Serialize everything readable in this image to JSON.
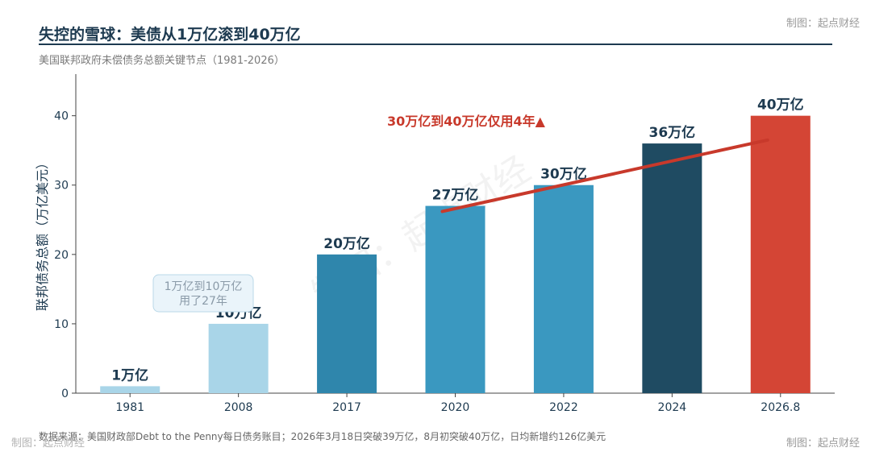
{
  "header": {
    "title": "失控的雪球：美债从1万亿滚到40万亿",
    "subtitle": "美国联邦政府未偿债务总额关键节点（1981-2026）"
  },
  "credits": {
    "top_right": "制图：起点财经",
    "bottom_right": "制图：起点财经",
    "bottom_left": "制图：起点财经"
  },
  "watermark": "制图：起点财经",
  "footer": {
    "source": "数据来源：美国财政部Debt to the Penny每日债务账目；2026年3月18日突破39万亿，8月初突破40万亿，日均新增约126亿美元"
  },
  "chart_data": {
    "type": "bar",
    "categories": [
      "1981",
      "2008",
      "2017",
      "2020",
      "2022",
      "2024",
      "2026.8"
    ],
    "values": [
      1,
      10,
      20,
      27,
      30,
      36,
      40
    ],
    "data_labels": [
      "1万亿",
      "10万亿",
      "20万亿",
      "27万亿",
      "30万亿",
      "36万亿",
      "40万亿"
    ],
    "bar_colors": [
      "#a9d5e8",
      "#a9d5e8",
      "#2f86ac",
      "#3a98c0",
      "#3a98c0",
      "#1f4b62",
      "#d44535"
    ],
    "ylabel": "联邦债务总额（万亿美元）",
    "xlabel": "",
    "ylim": [
      0,
      46
    ],
    "yticks": [
      0,
      10,
      20,
      30,
      40
    ],
    "grid": false,
    "annotations": [
      {
        "text": "1万亿到10万亿\n用了27年",
        "style": "callout-box",
        "color": "#8a9aa8"
      },
      {
        "text": "30万亿到40万亿仅用4年▲",
        "style": "bold",
        "color": "#c8392b"
      }
    ],
    "trend_line": {
      "from_category": "2020",
      "from_value": 26.2,
      "to_category": "2026.8",
      "to_value": 36.5,
      "color": "#c8392b"
    }
  }
}
